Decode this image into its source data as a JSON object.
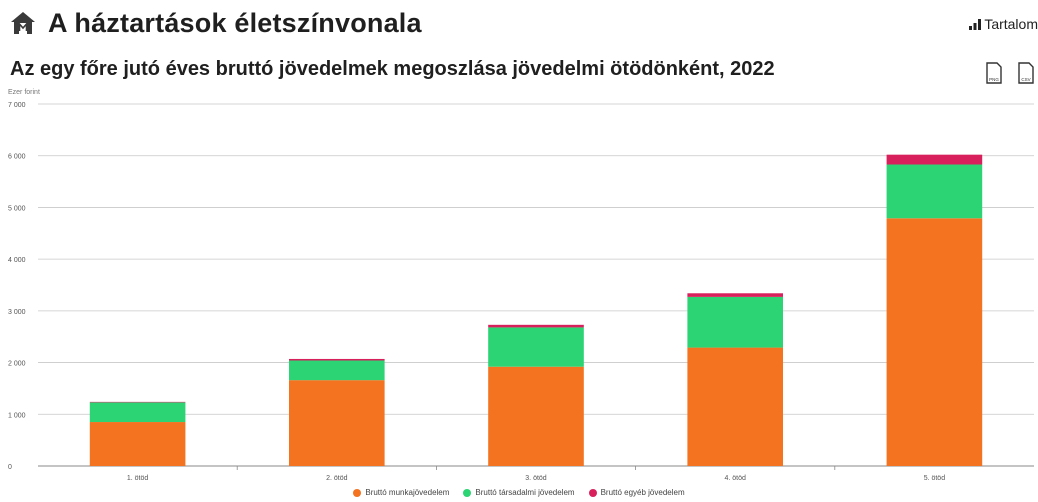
{
  "header": {
    "title": "A háztartások életszínvonala",
    "home_icon": "home-icon",
    "toc_label": "Tartalom",
    "toc_icon": "bar-chart-icon"
  },
  "chart_header": {
    "title": "Az egy főre jutó éves bruttó jövedelmek megoszlása jövedelmi ötödönként, 2022",
    "export_buttons": [
      {
        "label": "PNG",
        "icon": "png-file-icon"
      },
      {
        "label": "CSV",
        "icon": "csv-file-icon"
      }
    ]
  },
  "chart_data": {
    "type": "bar",
    "stacked": true,
    "ylabel": "Ezer forint",
    "ylim": [
      0,
      7000
    ],
    "yticks": [
      0,
      1000,
      2000,
      3000,
      4000,
      5000,
      6000,
      7000
    ],
    "ytick_labels": [
      "0",
      "1 000",
      "2 000",
      "3 000",
      "4 000",
      "5 000",
      "6 000",
      "7 000"
    ],
    "categories": [
      "1. ötöd",
      "2. ötöd",
      "3. ötöd",
      "4. ötöd",
      "5. ötöd"
    ],
    "series": [
      {
        "name": "Bruttó munkajövedelem",
        "color": "#f47321",
        "values": [
          850,
          1660,
          1920,
          2290,
          4790
        ]
      },
      {
        "name": "Bruttó társadalmi jövedelem",
        "color": "#2dd474",
        "values": [
          380,
          380,
          760,
          980,
          1040
        ]
      },
      {
        "name": "Bruttó egyéb jövedelem",
        "color": "#d8215c",
        "values": [
          10,
          30,
          50,
          70,
          190
        ]
      }
    ],
    "grid": true,
    "legend_position": "bottom"
  }
}
